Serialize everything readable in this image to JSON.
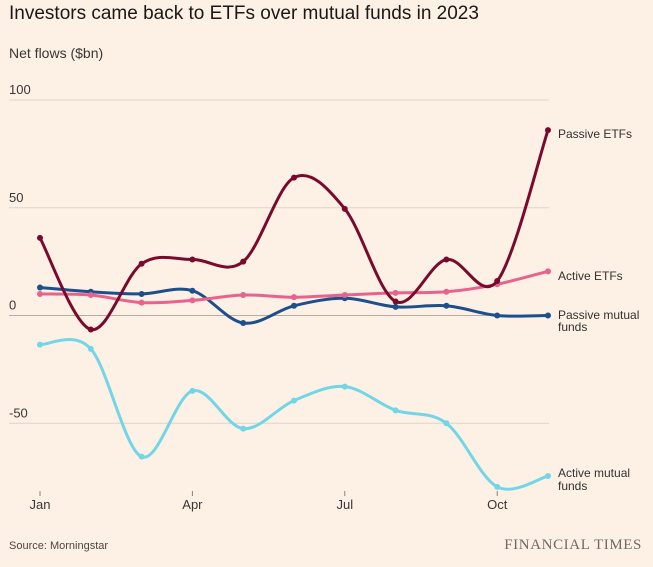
{
  "chart_data": {
    "type": "line",
    "title": "Investors came back to ETFs over mutual funds in 2023",
    "ylabel": "Net flows ($bn)",
    "xlabel": "",
    "ylim": [
      -80,
      100
    ],
    "y_ticks": [
      100,
      50,
      0,
      -50
    ],
    "x": [
      "Jan",
      "Feb",
      "Mar",
      "Apr",
      "May",
      "Jun",
      "Jul",
      "Aug",
      "Sep",
      "Oct",
      "Nov"
    ],
    "x_tick_labels": [
      "Jan",
      "Apr",
      "Jul",
      "Oct"
    ],
    "grid": true,
    "series": [
      {
        "name": "Passive ETFs",
        "label_lines": [
          "Passive ETFs"
        ],
        "color": "#7a0a2d",
        "values": [
          36,
          -6.5,
          24,
          26,
          25,
          64,
          49.5,
          6.5,
          26,
          16,
          86
        ]
      },
      {
        "name": "Active ETFs",
        "label_lines": [
          "Active ETFs"
        ],
        "color": "#e8628e",
        "values": [
          10,
          9.5,
          6,
          7,
          9.5,
          8.5,
          9.5,
          10.5,
          11,
          14.5,
          20.5
        ]
      },
      {
        "name": "Passive mutual funds",
        "label_lines": [
          "Passive mutual",
          "funds"
        ],
        "color": "#1c4f8c",
        "values": [
          13,
          11,
          10,
          11.5,
          -3.5,
          4.5,
          8,
          4,
          4.5,
          0,
          0
        ]
      },
      {
        "name": "Active mutual funds",
        "label_lines": [
          "Active mutual",
          "funds"
        ],
        "color": "#72d6e6",
        "values": [
          -13.5,
          -15.5,
          -65.5,
          -35,
          -52.5,
          -39.5,
          -33,
          -44,
          -50,
          -79.5,
          -74.5
        ]
      }
    ]
  },
  "source": "Source: Morningstar",
  "brand": "FINANCIAL TIMES"
}
